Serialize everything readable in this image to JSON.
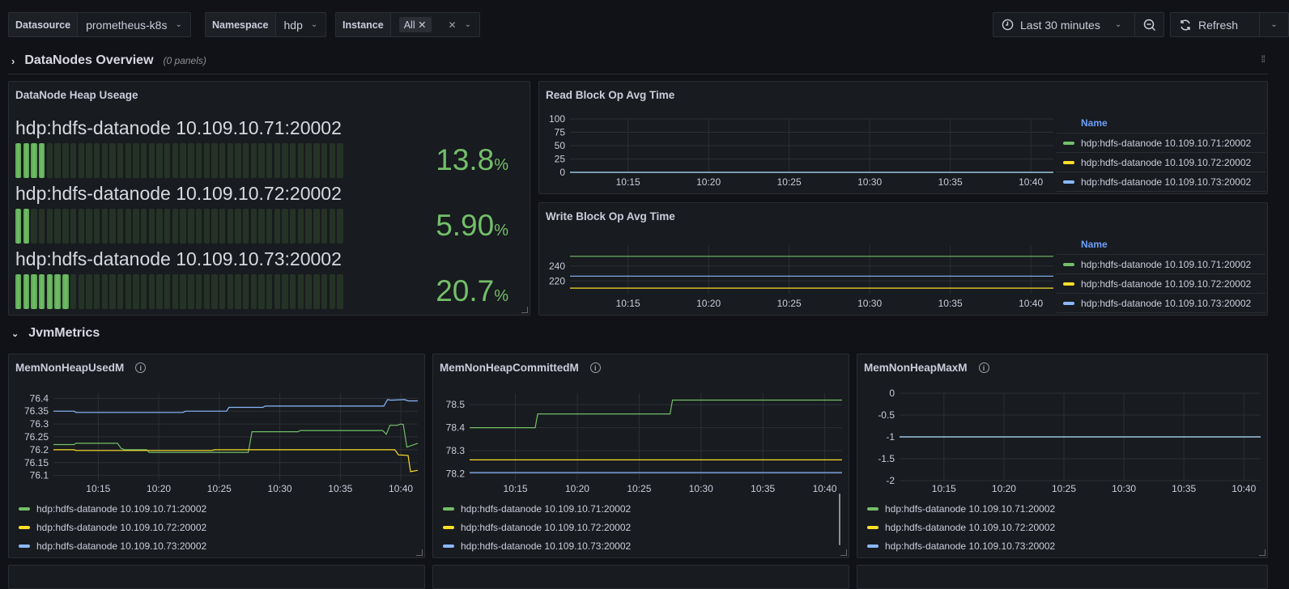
{
  "variables": [
    {
      "label": "Datasource",
      "value": "prometheus-k8s"
    },
    {
      "label": "Namespace",
      "value": "hdp"
    },
    {
      "label": "Instance",
      "value": "All"
    }
  ],
  "toolbar": {
    "time_range": "Last 30 minutes",
    "refresh": "Refresh"
  },
  "rows": [
    {
      "title": "DataNodes Overview",
      "subtitle": "(0 panels)",
      "collapsed": true
    },
    {
      "title": "JvmMetrics",
      "collapsed": false
    }
  ],
  "colors": {
    "green": "#73bf69",
    "yellow": "#fade2a",
    "blue": "#8ab8ff"
  },
  "series_names": [
    "hdp:hdfs-datanode 10.109.10.71:20002",
    "hdp:hdfs-datanode 10.109.10.72:20002",
    "hdp:hdfs-datanode 10.109.10.73:20002"
  ],
  "heap": {
    "title": "DataNode Heap Useage",
    "items": [
      {
        "name": "hdp:hdfs-datanode 10.109.10.71:20002",
        "value": "13.8",
        "unit": "%",
        "percent": 13.8
      },
      {
        "name": "hdp:hdfs-datanode 10.109.10.72:20002",
        "value": "5.90",
        "unit": "%",
        "percent": 5.9
      },
      {
        "name": "hdp:hdfs-datanode 10.109.10.73:20002",
        "value": "20.7",
        "unit": "%",
        "percent": 20.7
      }
    ]
  },
  "legend_header": "Name",
  "chart_data": [
    {
      "id": "read",
      "type": "line",
      "title": "Read Block Op Avg Time",
      "ylim": [
        0,
        100
      ],
      "yticks": [
        "100",
        "75",
        "50",
        "25",
        "0"
      ],
      "ytick_values": [
        100,
        75,
        50,
        25,
        0
      ],
      "xticks": [
        "10:15",
        "10:20",
        "10:25",
        "10:30",
        "10:35",
        "10:40"
      ],
      "xlim": [
        "10:11:24",
        "10:41:24"
      ],
      "grid": true,
      "legend": "right-table",
      "series": [
        {
          "name": "hdp:hdfs-datanode 10.109.10.71:20002",
          "color": "#73bf69",
          "points": [
            [
              "10:11:24",
              0
            ],
            [
              "10:41:24",
              0
            ]
          ]
        },
        {
          "name": "hdp:hdfs-datanode 10.109.10.72:20002",
          "color": "#fade2a",
          "points": [
            [
              "10:11:24",
              0
            ],
            [
              "10:41:24",
              0
            ]
          ]
        },
        {
          "name": "hdp:hdfs-datanode 10.109.10.73:20002",
          "color": "#8ab8ff",
          "points": [
            [
              "10:11:24",
              0
            ],
            [
              "10:41:24",
              0
            ]
          ]
        }
      ]
    },
    {
      "id": "write",
      "type": "line",
      "title": "Write Block Op Avg Time",
      "ylim": [
        203,
        268
      ],
      "yticks": [
        "240",
        "220"
      ],
      "ytick_values": [
        240,
        220
      ],
      "xticks": [
        "10:15",
        "10:20",
        "10:25",
        "10:30",
        "10:35",
        "10:40"
      ],
      "xlim": [
        "10:11:24",
        "10:41:24"
      ],
      "grid": true,
      "legend": "right-table",
      "series": [
        {
          "name": "hdp:hdfs-datanode 10.109.10.71:20002",
          "color": "#73bf69",
          "points": [
            [
              "10:11:24",
              253
            ],
            [
              "10:41:24",
              253
            ]
          ]
        },
        {
          "name": "hdp:hdfs-datanode 10.109.10.72:20002",
          "color": "#fade2a",
          "points": [
            [
              "10:11:24",
              210.5
            ],
            [
              "10:41:24",
              210.5
            ]
          ]
        },
        {
          "name": "hdp:hdfs-datanode 10.109.10.73:20002",
          "color": "#8ab8ff",
          "points": [
            [
              "10:11:24",
              226.5
            ],
            [
              "10:41:24",
              226.5
            ]
          ]
        }
      ]
    },
    {
      "id": "used",
      "type": "line",
      "title": "MemNonHeapUsedM",
      "ylim": [
        76.08,
        76.42
      ],
      "yticks": [
        "76.4",
        "76.35",
        "76.3",
        "76.25",
        "76.2",
        "76.15",
        "76.1"
      ],
      "ytick_values": [
        76.4,
        76.35,
        76.3,
        76.25,
        76.2,
        76.15,
        76.1
      ],
      "xticks": [
        "10:15",
        "10:20",
        "10:25",
        "10:30",
        "10:35",
        "10:40"
      ],
      "xlim": [
        "10:11:18",
        "10:41:24"
      ],
      "grid": true,
      "legend": "bottom",
      "series": [
        {
          "name": "hdp:hdfs-datanode 10.109.10.71:20002",
          "color": "#73bf69",
          "points": [
            [
              "10:11:18",
              76.22
            ],
            [
              "10:13:00",
              76.22
            ],
            [
              "10:13:10",
              76.225
            ],
            [
              "10:16:36",
              76.225
            ],
            [
              "10:16:54",
              76.205
            ],
            [
              "10:17:12",
              76.2
            ],
            [
              "10:19:00",
              76.2
            ],
            [
              "10:19:12",
              76.19
            ],
            [
              "10:27:24",
              76.19
            ],
            [
              "10:27:42",
              76.27
            ],
            [
              "10:31:30",
              76.27
            ],
            [
              "10:31:42",
              76.275
            ],
            [
              "10:38:30",
              76.275
            ],
            [
              "10:38:48",
              76.26
            ],
            [
              "10:39:06",
              76.295
            ],
            [
              "10:39:42",
              76.295
            ],
            [
              "10:40:00",
              76.3
            ],
            [
              "10:40:12",
              76.298
            ],
            [
              "10:40:30",
              76.21
            ],
            [
              "10:41:24",
              76.225
            ]
          ]
        },
        {
          "name": "hdp:hdfs-datanode 10.109.10.72:20002",
          "color": "#fade2a",
          "points": [
            [
              "10:11:18",
              76.2
            ],
            [
              "10:13:00",
              76.2
            ],
            [
              "10:13:10",
              76.197
            ],
            [
              "10:24:24",
              76.197
            ],
            [
              "10:24:36",
              76.2
            ],
            [
              "10:39:30",
              76.2
            ],
            [
              "10:39:48",
              76.18
            ],
            [
              "10:40:36",
              76.178
            ],
            [
              "10:40:48",
              76.115
            ],
            [
              "10:41:24",
              76.12
            ]
          ]
        },
        {
          "name": "hdp:hdfs-datanode 10.109.10.73:20002",
          "color": "#8ab8ff",
          "points": [
            [
              "10:11:18",
              76.35
            ],
            [
              "10:13:00",
              76.35
            ],
            [
              "10:13:10",
              76.345
            ],
            [
              "10:22:00",
              76.345
            ],
            [
              "10:22:12",
              76.35
            ],
            [
              "10:25:36",
              76.35
            ],
            [
              "10:25:48",
              76.365
            ],
            [
              "10:28:36",
              76.365
            ],
            [
              "10:28:48",
              76.37
            ],
            [
              "10:38:36",
              76.37
            ],
            [
              "10:38:54",
              76.395
            ],
            [
              "10:39:12",
              76.393
            ],
            [
              "10:40:18",
              76.395
            ],
            [
              "10:40:36",
              76.39
            ],
            [
              "10:41:24",
              76.39
            ]
          ]
        }
      ]
    },
    {
      "id": "committed",
      "type": "line",
      "title": "MemNonHeapCommittedM",
      "ylim": [
        78.17,
        78.55
      ],
      "yticks": [
        "78.5",
        "78.4",
        "78.3",
        "78.2"
      ],
      "ytick_values": [
        78.5,
        78.4,
        78.3,
        78.2
      ],
      "xticks": [
        "10:15",
        "10:20",
        "10:25",
        "10:30",
        "10:35",
        "10:40"
      ],
      "xlim": [
        "10:11:18",
        "10:41:24"
      ],
      "grid": true,
      "legend": "bottom",
      "series": [
        {
          "name": "hdp:hdfs-datanode 10.109.10.71:20002",
          "color": "#73bf69",
          "points": [
            [
              "10:11:18",
              78.4
            ],
            [
              "10:16:36",
              78.4
            ],
            [
              "10:16:48",
              78.46
            ],
            [
              "10:27:30",
              78.46
            ],
            [
              "10:27:42",
              78.52
            ],
            [
              "10:41:24",
              78.52
            ]
          ]
        },
        {
          "name": "hdp:hdfs-datanode 10.109.10.72:20002",
          "color": "#fade2a",
          "points": [
            [
              "10:11:18",
              78.26
            ],
            [
              "10:41:24",
              78.26
            ]
          ]
        },
        {
          "name": "hdp:hdfs-datanode 10.109.10.73:20002",
          "color": "#8ab8ff",
          "points": [
            [
              "10:11:18",
              78.205
            ],
            [
              "10:41:24",
              78.205
            ]
          ]
        }
      ]
    },
    {
      "id": "max",
      "type": "line",
      "title": "MemNonHeapMaxM",
      "ylim": [
        -2,
        0
      ],
      "yticks": [
        "0",
        "-0.5",
        "-1",
        "-1.5",
        "-2"
      ],
      "ytick_values": [
        0,
        -0.5,
        -1,
        -1.5,
        -2
      ],
      "xticks": [
        "10:15",
        "10:20",
        "10:25",
        "10:30",
        "10:35",
        "10:40"
      ],
      "xlim": [
        "10:11:18",
        "10:41:24"
      ],
      "grid": true,
      "legend": "bottom",
      "series": [
        {
          "name": "hdp:hdfs-datanode 10.109.10.71:20002",
          "color": "#73bf69",
          "points": [
            [
              "10:11:18",
              -1
            ],
            [
              "10:41:24",
              -1
            ]
          ]
        },
        {
          "name": "hdp:hdfs-datanode 10.109.10.72:20002",
          "color": "#fade2a",
          "points": [
            [
              "10:11:18",
              -1
            ],
            [
              "10:41:24",
              -1
            ]
          ]
        },
        {
          "name": "hdp:hdfs-datanode 10.109.10.73:20002",
          "color": "#8ab8ff",
          "points": [
            [
              "10:11:18",
              -1
            ],
            [
              "10:41:24",
              -1
            ]
          ]
        }
      ]
    }
  ]
}
